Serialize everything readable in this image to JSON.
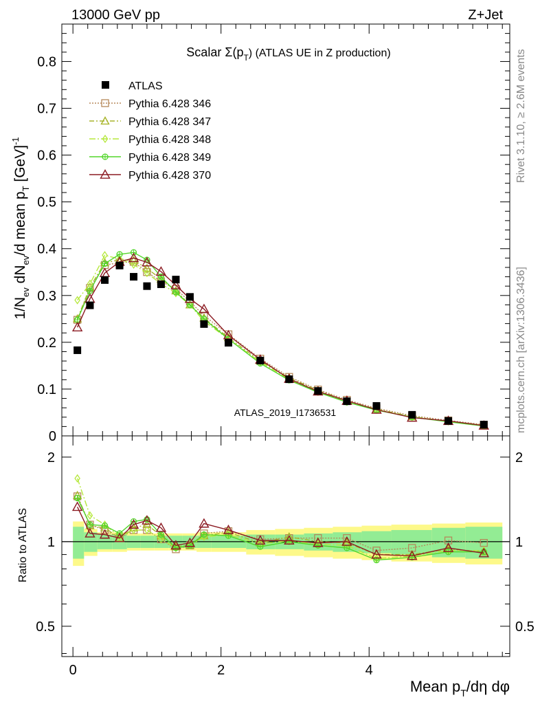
{
  "header": {
    "energy": "13000 GeV pp",
    "process": "Z+Jet"
  },
  "side": {
    "rivet": "Rivet 3.1.10, ≥ 2.6M events",
    "mcplots": "mcplots.cern.ch [arXiv:1306.3436]"
  },
  "watermark": "ATLAS_2019_I1736531",
  "chart_data": {
    "type": "line",
    "title_main": "Scalar Σ(p",
    "title_sub": "T",
    "title_rest": ") (ATLAS UE in Z production)",
    "ylabel": "1/N_ev dN_ev/d mean p_T [GeV]^-1",
    "xlabel": "Mean p_T/dη dφ",
    "ratio_ylabel": "Ratio to ATLAS",
    "xlim": [
      -0.15,
      5.9
    ],
    "ylim": [
      0,
      0.88
    ],
    "ratio_ylim": [
      0.39,
      2.38
    ],
    "x_ticks": [
      "0",
      "2",
      "4"
    ],
    "y_ticks": [
      "0",
      "0.1",
      "0.2",
      "0.3",
      "0.4",
      "0.5",
      "0.6",
      "0.7",
      "0.8"
    ],
    "ratio_ticks": [
      "0.5",
      "1",
      "2"
    ],
    "x": [
      0.06,
      0.23,
      0.43,
      0.63,
      0.82,
      1.0,
      1.19,
      1.39,
      1.58,
      1.77,
      2.1,
      2.53,
      2.92,
      3.31,
      3.7,
      4.1,
      4.58,
      5.07,
      5.55
    ],
    "bins": [
      0,
      0.15,
      0.33,
      0.53,
      0.73,
      0.91,
      1.1,
      1.29,
      1.48,
      1.67,
      1.87,
      2.34,
      2.73,
      3.12,
      3.51,
      3.9,
      4.3,
      4.85,
      5.3,
      5.8
    ],
    "atlas": [
      0.183,
      0.279,
      0.333,
      0.364,
      0.34,
      0.32,
      0.324,
      0.334,
      0.297,
      0.239,
      0.199,
      0.161,
      0.121,
      0.096,
      0.074,
      0.064,
      0.045,
      0.032,
      0.024
    ],
    "band_inner": [
      0.13,
      0.08,
      0.06,
      0.06,
      0.05,
      0.05,
      0.05,
      0.05,
      0.05,
      0.05,
      0.05,
      0.06,
      0.06,
      0.07,
      0.08,
      0.09,
      0.1,
      0.12,
      0.13
    ],
    "band_outer": [
      0.18,
      0.11,
      0.08,
      0.08,
      0.07,
      0.07,
      0.07,
      0.07,
      0.07,
      0.08,
      0.08,
      0.1,
      0.11,
      0.12,
      0.13,
      0.14,
      0.15,
      0.16,
      0.17
    ],
    "legend_atlas": "ATLAS",
    "series": [
      {
        "name": "Pythia 6.428 346",
        "color": "#b5895a",
        "dash": "2,2",
        "marker": "square",
        "values": [
          0.248,
          0.316,
          0.365,
          0.37,
          0.372,
          0.35,
          0.33,
          0.314,
          0.287,
          0.257,
          0.217,
          0.165,
          0.126,
          0.099,
          0.077,
          0.059,
          0.043,
          0.033,
          0.024
        ],
        "ratio": [
          1.45,
          1.15,
          1.1,
          1.03,
          1.1,
          1.1,
          1.02,
          0.94,
          0.97,
          1.07,
          1.09,
          1.02,
          1.03,
          1.03,
          1.03,
          0.93,
          0.95,
          1.01,
          0.99
        ]
      },
      {
        "name": "Pythia 6.428 347",
        "color": "#a8b42a",
        "dash": "7,3,2,3",
        "marker": "triangle",
        "values": [
          0.25,
          0.318,
          0.37,
          0.376,
          0.375,
          0.358,
          0.335,
          0.31,
          0.28,
          0.252,
          0.21,
          0.16,
          0.124,
          0.097,
          0.075,
          0.057,
          0.041,
          0.031,
          0.023
        ],
        "ratio": [
          1.46,
          1.14,
          1.12,
          1.03,
          1.12,
          1.15,
          1.05,
          0.96,
          0.97,
          1.05,
          1.08,
          0.99,
          1.04,
          1.0,
          0.99,
          0.9,
          0.9,
          0.94,
          0.92
        ]
      },
      {
        "name": "Pythia 6.428 348",
        "color": "#b5e83c",
        "dash": "9,3,2,3",
        "marker": "diamond",
        "values": [
          0.29,
          0.325,
          0.386,
          0.378,
          0.366,
          0.348,
          0.325,
          0.305,
          0.28,
          0.245,
          0.207,
          0.158,
          0.121,
          0.094,
          0.073,
          0.056,
          0.04,
          0.031,
          0.022
        ],
        "ratio": [
          1.68,
          1.24,
          1.15,
          1.04,
          1.1,
          1.1,
          1.02,
          0.95,
          0.97,
          1.04,
          1.06,
          0.98,
          1.01,
          0.98,
          0.97,
          0.87,
          0.89,
          0.93,
          0.93
        ]
      },
      {
        "name": "Pythia 6.428 349",
        "color": "#52d62a",
        "dash": "",
        "marker": "circle",
        "values": [
          0.248,
          0.31,
          0.368,
          0.388,
          0.392,
          0.376,
          0.34,
          0.307,
          0.28,
          0.25,
          0.207,
          0.155,
          0.119,
          0.093,
          0.072,
          0.055,
          0.04,
          0.03,
          0.021
        ],
        "ratio": [
          1.43,
          1.15,
          1.14,
          1.07,
          1.18,
          1.2,
          1.06,
          0.95,
          0.97,
          1.06,
          1.05,
          0.96,
          1.0,
          0.97,
          0.95,
          0.86,
          0.88,
          0.92,
          0.92
        ]
      },
      {
        "name": "Pythia 6.428 370",
        "color": "#8b1a22",
        "dash": "",
        "marker": "triangle-open",
        "values": [
          0.232,
          0.293,
          0.348,
          0.372,
          0.38,
          0.371,
          0.351,
          0.322,
          0.293,
          0.271,
          0.215,
          0.163,
          0.122,
          0.095,
          0.075,
          0.056,
          0.039,
          0.032,
          0.022
        ],
        "ratio": [
          1.33,
          1.07,
          1.06,
          1.03,
          1.15,
          1.19,
          1.12,
          0.97,
          0.99,
          1.16,
          1.1,
          1.01,
          1.01,
          0.99,
          1.0,
          0.9,
          0.89,
          0.95,
          0.91
        ]
      }
    ]
  }
}
